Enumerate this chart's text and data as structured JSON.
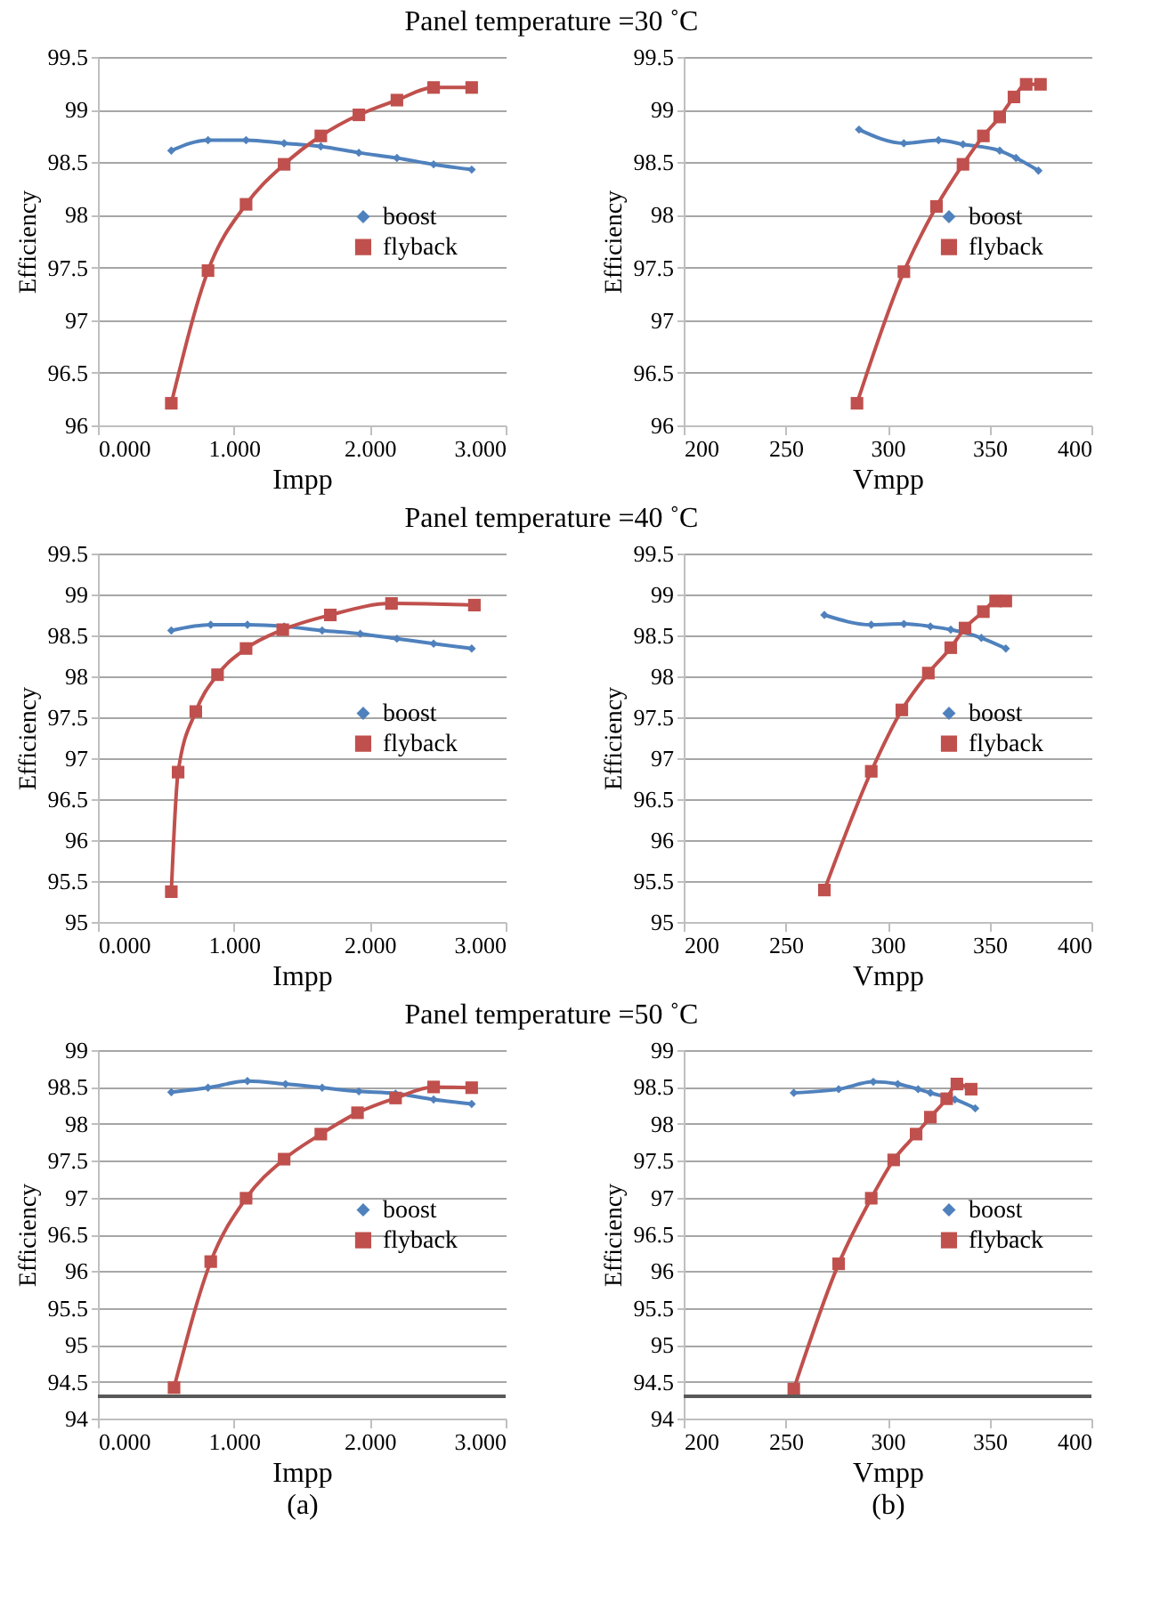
{
  "chart_data": [
    {
      "type": "line",
      "xlabel": "Impp",
      "ylabel": "Efficiency",
      "xlim": [
        0,
        3
      ],
      "xticks": [
        {
          "value": 0,
          "label": "0.000"
        },
        {
          "value": 1,
          "label": "1.000"
        },
        {
          "value": 2,
          "label": "2.000"
        },
        {
          "value": 3,
          "label": "3.000"
        }
      ],
      "ylim": [
        96,
        99.5
      ],
      "yticks": [
        96,
        96.5,
        97,
        97.5,
        98,
        98.5,
        99,
        99.5
      ],
      "grid": "y",
      "legend": "right",
      "series": [
        {
          "name": "boost",
          "color": "#4f81bd",
          "marker": "diamond",
          "x": [
            0.54,
            0.81,
            1.09,
            1.37,
            1.64,
            1.92,
            2.2,
            2.47,
            2.75
          ],
          "values": [
            98.61,
            98.71,
            98.71,
            98.68,
            98.65,
            98.59,
            98.54,
            98.48,
            98.43
          ]
        },
        {
          "name": "flyback",
          "color": "#c0504d",
          "marker": "square",
          "x": [
            0.54,
            0.81,
            1.09,
            1.37,
            1.64,
            1.92,
            2.2,
            2.47,
            2.75
          ],
          "values": [
            96.21,
            97.47,
            98.1,
            98.48,
            98.75,
            98.95,
            99.09,
            99.21,
            99.21
          ]
        }
      ]
    },
    {
      "type": "line",
      "title": "Panel temperature =30 ˚C",
      "xlabel": "Vmpp",
      "ylabel": "Efficiency",
      "xlim": [
        200,
        400
      ],
      "xticks": [
        200,
        250,
        300,
        350,
        400
      ],
      "ylim": [
        96,
        99.5
      ],
      "yticks": [
        96,
        96.5,
        97,
        97.5,
        98,
        98.5,
        99,
        99.5
      ],
      "grid": "y",
      "legend": "right",
      "series": [
        {
          "name": "boost",
          "color": "#4f81bd",
          "marker": "diamond",
          "x": [
            286,
            308,
            325,
            337,
            355,
            363,
            374
          ],
          "values": [
            98.81,
            98.68,
            98.71,
            98.67,
            98.61,
            98.54,
            98.42
          ]
        },
        {
          "name": "flyback",
          "color": "#c0504d",
          "marker": "square",
          "x": [
            285,
            308,
            324,
            337,
            347,
            355,
            362,
            368,
            375
          ],
          "values": [
            96.21,
            97.46,
            98.08,
            98.48,
            98.75,
            98.93,
            99.12,
            99.24,
            99.24
          ]
        }
      ]
    },
    {
      "type": "line",
      "xlabel": "Impp",
      "ylabel": "Efficiency",
      "xlim": [
        0,
        3
      ],
      "xticks": [
        {
          "value": 0,
          "label": "0.000"
        },
        {
          "value": 1,
          "label": "1.000"
        },
        {
          "value": 2,
          "label": "2.000"
        },
        {
          "value": 3,
          "label": "3.000"
        }
      ],
      "ylim": [
        95,
        99.5
      ],
      "yticks": [
        95,
        95.5,
        96,
        96.5,
        97,
        97.5,
        98,
        98.5,
        99,
        99.5
      ],
      "grid": "y",
      "legend": "right",
      "series": [
        {
          "name": "boost",
          "color": "#4f81bd",
          "marker": "diamond",
          "x": [
            0.54,
            0.83,
            1.1,
            1.37,
            1.65,
            1.93,
            2.2,
            2.47,
            2.75
          ],
          "values": [
            98.56,
            98.63,
            98.63,
            98.61,
            98.56,
            98.52,
            98.46,
            98.4,
            98.34
          ]
        },
        {
          "name": "flyback",
          "color": "#c0504d",
          "marker": "square",
          "x": [
            0.54,
            0.59,
            0.72,
            0.88,
            1.09,
            1.36,
            1.71,
            2.16,
            2.77
          ],
          "values": [
            95.37,
            96.83,
            97.57,
            98.02,
            98.34,
            98.57,
            98.75,
            98.89,
            98.87
          ]
        }
      ]
    },
    {
      "type": "line",
      "title": "Panel temperature =40 ˚C",
      "xlabel": "Vmpp",
      "ylabel": "Efficiency",
      "xlim": [
        200,
        400
      ],
      "xticks": [
        200,
        250,
        300,
        350,
        400
      ],
      "ylim": [
        95,
        99.5
      ],
      "yticks": [
        95,
        95.5,
        96,
        96.5,
        97,
        97.5,
        98,
        98.5,
        99,
        99.5
      ],
      "grid": "y",
      "legend": "right",
      "series": [
        {
          "name": "boost",
          "color": "#4f81bd",
          "marker": "diamond",
          "x": [
            269,
            292,
            308,
            321,
            331,
            346,
            358
          ],
          "values": [
            98.75,
            98.63,
            98.64,
            98.61,
            98.57,
            98.47,
            98.34
          ]
        },
        {
          "name": "flyback",
          "color": "#c0504d",
          "marker": "square",
          "x": [
            269,
            292,
            307,
            320,
            331,
            338,
            347,
            353,
            358
          ],
          "values": [
            95.39,
            96.84,
            97.59,
            98.04,
            98.35,
            98.59,
            98.79,
            98.92,
            98.92
          ]
        }
      ]
    },
    {
      "type": "line",
      "xlabel": "Impp",
      "ylabel": "Efficiency",
      "annotations": [
        "(a)"
      ],
      "xlim": [
        0,
        3
      ],
      "xticks": [
        {
          "value": 0,
          "label": "0.000"
        },
        {
          "value": 1,
          "label": "1.000"
        },
        {
          "value": 2,
          "label": "2.000"
        },
        {
          "value": 3,
          "label": "3.000"
        }
      ],
      "ylim": [
        94,
        99
      ],
      "yticks": [
        94,
        94.5,
        95,
        95.5,
        96,
        96.5,
        97,
        97.5,
        98,
        98.5,
        99
      ],
      "grid": "y",
      "legend": "right",
      "ref_lines": [
        {
          "axis": "y",
          "value": 94.3,
          "color": "#595959"
        }
      ],
      "series": [
        {
          "name": "boost",
          "color": "#4f81bd",
          "marker": "diamond",
          "x": [
            0.54,
            0.81,
            1.1,
            1.38,
            1.65,
            1.92,
            2.19,
            2.47,
            2.75
          ],
          "values": [
            98.43,
            98.49,
            98.58,
            98.54,
            98.49,
            98.44,
            98.41,
            98.33,
            98.27
          ]
        },
        {
          "name": "flyback",
          "color": "#c0504d",
          "marker": "square",
          "x": [
            0.56,
            0.83,
            1.09,
            1.37,
            1.64,
            1.91,
            2.19,
            2.47,
            2.75
          ],
          "values": [
            94.42,
            96.13,
            96.99,
            97.52,
            97.86,
            98.15,
            98.35,
            98.5,
            98.49
          ]
        }
      ]
    },
    {
      "type": "line",
      "title": "Panel temperature =50 ˚C",
      "xlabel": "Vmpp",
      "ylabel": "Efficiency",
      "annotations": [
        "(b)"
      ],
      "xlim": [
        200,
        400
      ],
      "xticks": [
        200,
        250,
        300,
        350,
        400
      ],
      "ylim": [
        94,
        99
      ],
      "yticks": [
        94,
        94.5,
        95,
        95.5,
        96,
        96.5,
        97,
        97.5,
        98,
        98.5,
        99
      ],
      "grid": "y",
      "legend": "right",
      "ref_lines": [
        {
          "axis": "y",
          "value": 94.3,
          "color": "#595959"
        }
      ],
      "series": [
        {
          "name": "boost",
          "color": "#4f81bd",
          "marker": "diamond",
          "x": [
            254,
            276,
            293,
            305,
            315,
            321,
            328,
            333,
            343
          ],
          "values": [
            98.42,
            98.47,
            98.57,
            98.54,
            98.47,
            98.42,
            98.37,
            98.33,
            98.21
          ]
        },
        {
          "name": "flyback",
          "color": "#c0504d",
          "marker": "square",
          "x": [
            254,
            276,
            292,
            303,
            314,
            321,
            329,
            334,
            341
          ],
          "values": [
            94.4,
            96.1,
            96.99,
            97.51,
            97.86,
            98.09,
            98.34,
            98.54,
            98.47
          ]
        }
      ]
    }
  ]
}
